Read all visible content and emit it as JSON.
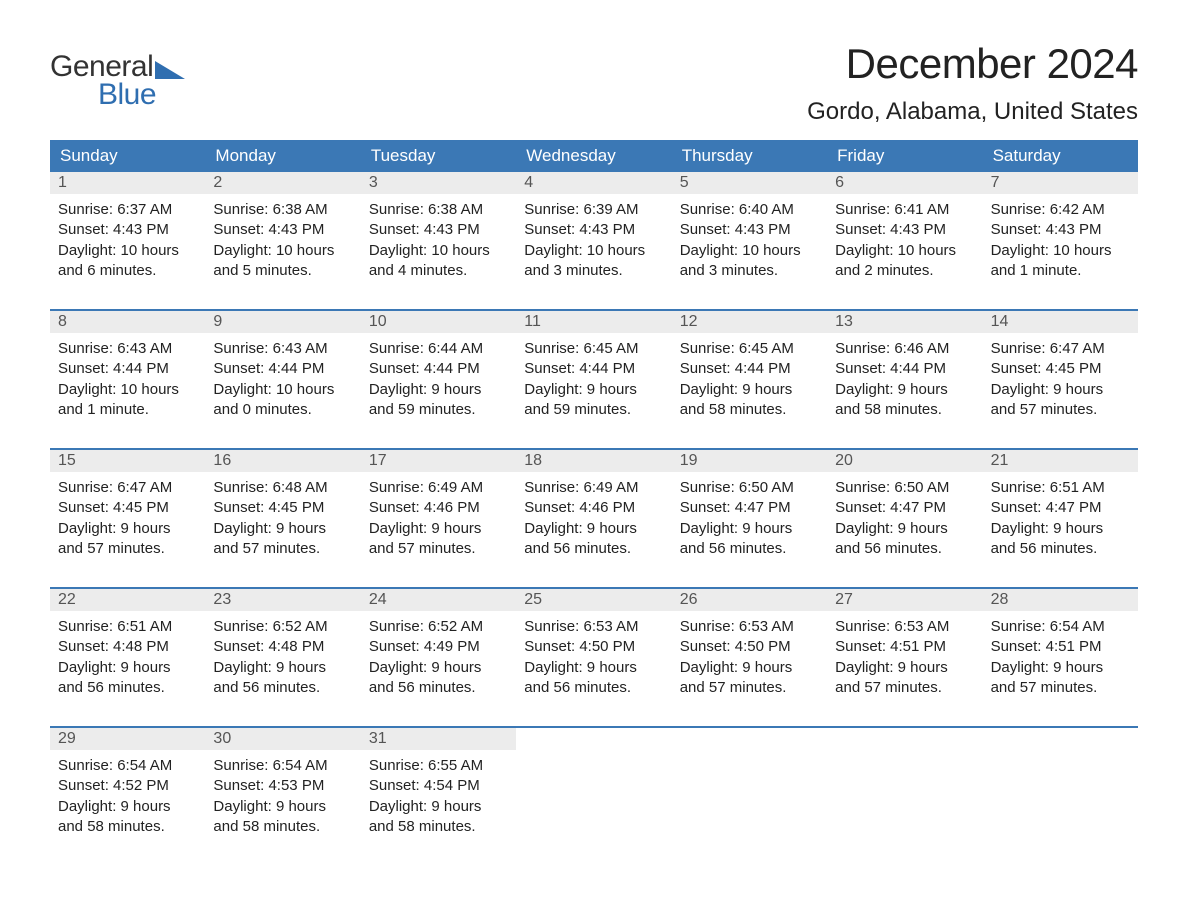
{
  "logo": {
    "text_general": "General",
    "text_blue": "Blue",
    "triangle_color": "#2f6eb0",
    "text_color_dark": "#333333"
  },
  "title": "December 2024",
  "location": "Gordo, Alabama, United States",
  "colors": {
    "header_bg": "#3b78b5",
    "header_text": "#ffffff",
    "daynum_bg": "#ececec",
    "daynum_text": "#555555",
    "body_text": "#222222",
    "week_divider": "#3b78b5",
    "page_bg": "#ffffff"
  },
  "typography": {
    "title_fontsize": 42,
    "location_fontsize": 24,
    "dow_fontsize": 17,
    "daynum_fontsize": 16,
    "body_fontsize": 15,
    "logo_fontsize": 30
  },
  "layout": {
    "columns": 7,
    "weeks": 5
  },
  "days_of_week": [
    "Sunday",
    "Monday",
    "Tuesday",
    "Wednesday",
    "Thursday",
    "Friday",
    "Saturday"
  ],
  "weeks": [
    [
      {
        "day": "1",
        "sunrise": "Sunrise: 6:37 AM",
        "sunset": "Sunset: 4:43 PM",
        "daylight1": "Daylight: 10 hours",
        "daylight2": "and 6 minutes."
      },
      {
        "day": "2",
        "sunrise": "Sunrise: 6:38 AM",
        "sunset": "Sunset: 4:43 PM",
        "daylight1": "Daylight: 10 hours",
        "daylight2": "and 5 minutes."
      },
      {
        "day": "3",
        "sunrise": "Sunrise: 6:38 AM",
        "sunset": "Sunset: 4:43 PM",
        "daylight1": "Daylight: 10 hours",
        "daylight2": "and 4 minutes."
      },
      {
        "day": "4",
        "sunrise": "Sunrise: 6:39 AM",
        "sunset": "Sunset: 4:43 PM",
        "daylight1": "Daylight: 10 hours",
        "daylight2": "and 3 minutes."
      },
      {
        "day": "5",
        "sunrise": "Sunrise: 6:40 AM",
        "sunset": "Sunset: 4:43 PM",
        "daylight1": "Daylight: 10 hours",
        "daylight2": "and 3 minutes."
      },
      {
        "day": "6",
        "sunrise": "Sunrise: 6:41 AM",
        "sunset": "Sunset: 4:43 PM",
        "daylight1": "Daylight: 10 hours",
        "daylight2": "and 2 minutes."
      },
      {
        "day": "7",
        "sunrise": "Sunrise: 6:42 AM",
        "sunset": "Sunset: 4:43 PM",
        "daylight1": "Daylight: 10 hours",
        "daylight2": "and 1 minute."
      }
    ],
    [
      {
        "day": "8",
        "sunrise": "Sunrise: 6:43 AM",
        "sunset": "Sunset: 4:44 PM",
        "daylight1": "Daylight: 10 hours",
        "daylight2": "and 1 minute."
      },
      {
        "day": "9",
        "sunrise": "Sunrise: 6:43 AM",
        "sunset": "Sunset: 4:44 PM",
        "daylight1": "Daylight: 10 hours",
        "daylight2": "and 0 minutes."
      },
      {
        "day": "10",
        "sunrise": "Sunrise: 6:44 AM",
        "sunset": "Sunset: 4:44 PM",
        "daylight1": "Daylight: 9 hours",
        "daylight2": "and 59 minutes."
      },
      {
        "day": "11",
        "sunrise": "Sunrise: 6:45 AM",
        "sunset": "Sunset: 4:44 PM",
        "daylight1": "Daylight: 9 hours",
        "daylight2": "and 59 minutes."
      },
      {
        "day": "12",
        "sunrise": "Sunrise: 6:45 AM",
        "sunset": "Sunset: 4:44 PM",
        "daylight1": "Daylight: 9 hours",
        "daylight2": "and 58 minutes."
      },
      {
        "day": "13",
        "sunrise": "Sunrise: 6:46 AM",
        "sunset": "Sunset: 4:44 PM",
        "daylight1": "Daylight: 9 hours",
        "daylight2": "and 58 minutes."
      },
      {
        "day": "14",
        "sunrise": "Sunrise: 6:47 AM",
        "sunset": "Sunset: 4:45 PM",
        "daylight1": "Daylight: 9 hours",
        "daylight2": "and 57 minutes."
      }
    ],
    [
      {
        "day": "15",
        "sunrise": "Sunrise: 6:47 AM",
        "sunset": "Sunset: 4:45 PM",
        "daylight1": "Daylight: 9 hours",
        "daylight2": "and 57 minutes."
      },
      {
        "day": "16",
        "sunrise": "Sunrise: 6:48 AM",
        "sunset": "Sunset: 4:45 PM",
        "daylight1": "Daylight: 9 hours",
        "daylight2": "and 57 minutes."
      },
      {
        "day": "17",
        "sunrise": "Sunrise: 6:49 AM",
        "sunset": "Sunset: 4:46 PM",
        "daylight1": "Daylight: 9 hours",
        "daylight2": "and 57 minutes."
      },
      {
        "day": "18",
        "sunrise": "Sunrise: 6:49 AM",
        "sunset": "Sunset: 4:46 PM",
        "daylight1": "Daylight: 9 hours",
        "daylight2": "and 56 minutes."
      },
      {
        "day": "19",
        "sunrise": "Sunrise: 6:50 AM",
        "sunset": "Sunset: 4:47 PM",
        "daylight1": "Daylight: 9 hours",
        "daylight2": "and 56 minutes."
      },
      {
        "day": "20",
        "sunrise": "Sunrise: 6:50 AM",
        "sunset": "Sunset: 4:47 PM",
        "daylight1": "Daylight: 9 hours",
        "daylight2": "and 56 minutes."
      },
      {
        "day": "21",
        "sunrise": "Sunrise: 6:51 AM",
        "sunset": "Sunset: 4:47 PM",
        "daylight1": "Daylight: 9 hours",
        "daylight2": "and 56 minutes."
      }
    ],
    [
      {
        "day": "22",
        "sunrise": "Sunrise: 6:51 AM",
        "sunset": "Sunset: 4:48 PM",
        "daylight1": "Daylight: 9 hours",
        "daylight2": "and 56 minutes."
      },
      {
        "day": "23",
        "sunrise": "Sunrise: 6:52 AM",
        "sunset": "Sunset: 4:48 PM",
        "daylight1": "Daylight: 9 hours",
        "daylight2": "and 56 minutes."
      },
      {
        "day": "24",
        "sunrise": "Sunrise: 6:52 AM",
        "sunset": "Sunset: 4:49 PM",
        "daylight1": "Daylight: 9 hours",
        "daylight2": "and 56 minutes."
      },
      {
        "day": "25",
        "sunrise": "Sunrise: 6:53 AM",
        "sunset": "Sunset: 4:50 PM",
        "daylight1": "Daylight: 9 hours",
        "daylight2": "and 56 minutes."
      },
      {
        "day": "26",
        "sunrise": "Sunrise: 6:53 AM",
        "sunset": "Sunset: 4:50 PM",
        "daylight1": "Daylight: 9 hours",
        "daylight2": "and 57 minutes."
      },
      {
        "day": "27",
        "sunrise": "Sunrise: 6:53 AM",
        "sunset": "Sunset: 4:51 PM",
        "daylight1": "Daylight: 9 hours",
        "daylight2": "and 57 minutes."
      },
      {
        "day": "28",
        "sunrise": "Sunrise: 6:54 AM",
        "sunset": "Sunset: 4:51 PM",
        "daylight1": "Daylight: 9 hours",
        "daylight2": "and 57 minutes."
      }
    ],
    [
      {
        "day": "29",
        "sunrise": "Sunrise: 6:54 AM",
        "sunset": "Sunset: 4:52 PM",
        "daylight1": "Daylight: 9 hours",
        "daylight2": "and 58 minutes."
      },
      {
        "day": "30",
        "sunrise": "Sunrise: 6:54 AM",
        "sunset": "Sunset: 4:53 PM",
        "daylight1": "Daylight: 9 hours",
        "daylight2": "and 58 minutes."
      },
      {
        "day": "31",
        "sunrise": "Sunrise: 6:55 AM",
        "sunset": "Sunset: 4:54 PM",
        "daylight1": "Daylight: 9 hours",
        "daylight2": "and 58 minutes."
      },
      null,
      null,
      null,
      null
    ]
  ]
}
